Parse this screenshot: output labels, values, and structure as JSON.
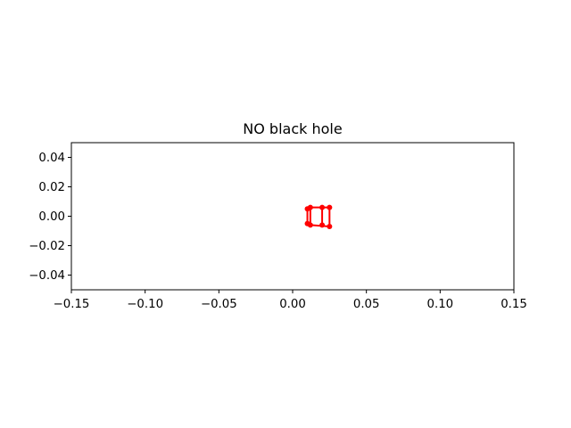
{
  "chart_data": {
    "type": "line",
    "title": "NO black hole",
    "xlabel": "",
    "ylabel": "",
    "xlim": [
      -0.15,
      0.15
    ],
    "ylim": [
      -0.05,
      0.05
    ],
    "xticks": [
      "−0.15",
      "−0.10",
      "−0.05",
      "0.00",
      "0.05",
      "0.10",
      "0.15"
    ],
    "xtick_values": [
      -0.15,
      -0.1,
      -0.05,
      0.0,
      0.05,
      0.1,
      0.15
    ],
    "yticks": [
      "−0.04",
      "−0.02",
      "0.00",
      "0.02",
      "0.04"
    ],
    "ytick_values": [
      -0.04,
      -0.02,
      0.0,
      0.02,
      0.04
    ],
    "grid": false,
    "legend": false,
    "series": [
      {
        "color": "#ff0000",
        "marker": "circle",
        "segments": [
          {
            "x": [
              0.01,
              0.012
            ],
            "y": [
              0.005,
              0.006
            ]
          },
          {
            "x": [
              0.012,
              0.025
            ],
            "y": [
              0.006,
              0.006
            ]
          },
          {
            "x": [
              0.025,
              0.025
            ],
            "y": [
              0.006,
              -0.007
            ]
          },
          {
            "x": [
              0.025,
              0.012
            ],
            "y": [
              -0.007,
              -0.006
            ]
          },
          {
            "x": [
              0.012,
              0.01
            ],
            "y": [
              -0.006,
              -0.005
            ]
          },
          {
            "x": [
              0.01,
              0.01
            ],
            "y": [
              -0.005,
              0.005
            ]
          },
          {
            "x": [
              0.012,
              0.012
            ],
            "y": [
              0.006,
              -0.006
            ]
          },
          {
            "x": [
              0.02,
              0.02
            ],
            "y": [
              0.006,
              -0.006
            ]
          }
        ],
        "points": [
          {
            "x": 0.01,
            "y": 0.005
          },
          {
            "x": 0.012,
            "y": 0.006
          },
          {
            "x": 0.02,
            "y": 0.006
          },
          {
            "x": 0.025,
            "y": 0.006
          },
          {
            "x": 0.025,
            "y": -0.007
          },
          {
            "x": 0.02,
            "y": -0.006
          },
          {
            "x": 0.012,
            "y": -0.006
          },
          {
            "x": 0.01,
            "y": -0.005
          }
        ]
      }
    ]
  }
}
